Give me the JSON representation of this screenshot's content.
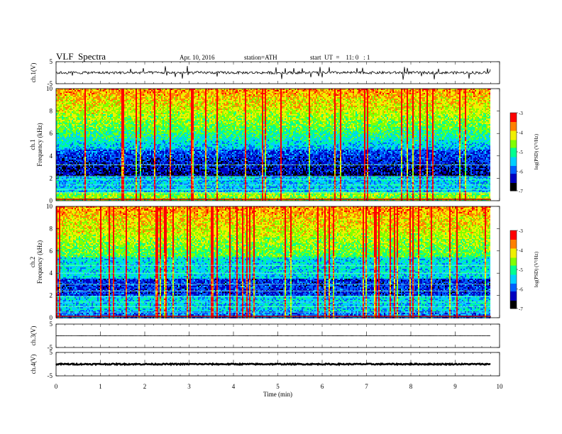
{
  "header": {
    "title": "VLF  Spectra",
    "date": "Apr. 10, 2016",
    "station": "station=ATH",
    "start": "start  UT  =    11: 0   : 1"
  },
  "chart_data": {
    "type": "heatmap",
    "title": "VLF  Spectra",
    "xlabel": "Time  (min)",
    "x_ticks": [
      "0",
      "1",
      "2",
      "3",
      "4",
      "5",
      "6",
      "7",
      "8",
      "9",
      "10"
    ],
    "xlim": [
      0,
      10
    ],
    "data_end_min": 9.8,
    "panels": [
      {
        "name": "ch1-waveform",
        "ylabel": "ch.1(V)",
        "ylim": [
          -5,
          5
        ],
        "y_ticks": [
          "5",
          "-5"
        ],
        "baseline": 0,
        "noise_amplitude": 0.6
      },
      {
        "name": "ch1-spectrogram",
        "ylabel_top": "ch.1",
        "ylabel": "Frequency  (kHz)",
        "ylim": [
          0,
          10
        ],
        "y_ticks": [
          "0",
          "2",
          "4",
          "6",
          "8",
          "10"
        ],
        "colorbar": {
          "label": "log(PSD) (V²/Hz)",
          "min": -7,
          "max": -3,
          "ticks": [
            "-3",
            "-4",
            "-5",
            "-6",
            "-7"
          ]
        }
      },
      {
        "name": "ch2-spectrogram",
        "ylabel_top": "ch.2",
        "ylabel": "Frequency  (kHz)",
        "ylim": [
          0,
          10
        ],
        "y_ticks": [
          "0",
          "2",
          "4",
          "6",
          "8",
          "10"
        ],
        "colorbar": {
          "label": "log(PSD) (V²/Hz)",
          "min": -7,
          "max": -3,
          "ticks": [
            "-3",
            "-4",
            "-5",
            "-6",
            "-7"
          ]
        }
      },
      {
        "name": "ch3-waveform",
        "ylabel": "ch.3(V)",
        "ylim": [
          -5,
          5
        ],
        "y_ticks": [
          "5",
          "-5"
        ],
        "baseline": 0,
        "noise_amplitude": 0.02
      },
      {
        "name": "ch4-waveform",
        "ylabel": "ch.4(V)",
        "ylim": [
          -5,
          5
        ],
        "y_ticks": [
          "5",
          "-5"
        ],
        "baseline": 0,
        "noise_amplitude": 0.25
      }
    ],
    "colors": {
      "scale": [
        "#000000",
        "#0000c0",
        "#0060ff",
        "#00d0ff",
        "#00ff90",
        "#80ff00",
        "#f0f000",
        "#ff8000",
        "#ff0000",
        "#ffffff"
      ]
    }
  }
}
